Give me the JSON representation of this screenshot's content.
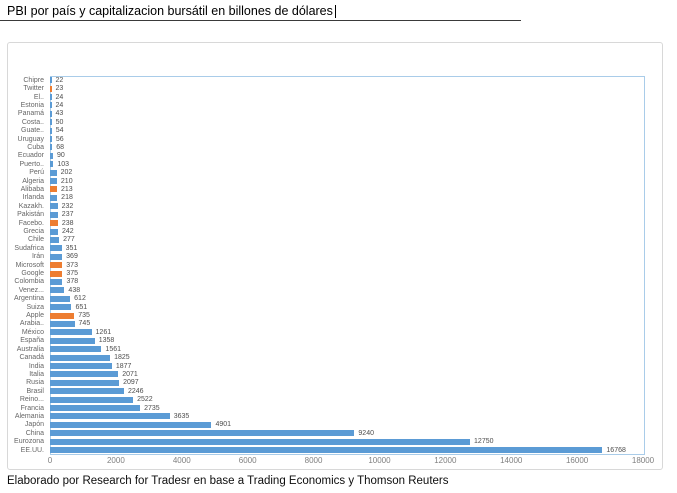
{
  "title_field": {
    "value": "PBI por país y capitalizacion bursátil en billones de dólares"
  },
  "caption": "Elaborado por Research for Tradesr en base a Trading Economics y Thomson Reuters",
  "chart_data": {
    "type": "bar",
    "orientation": "horizontal",
    "title": "PBI por país y capitalizacion bursátil en billones de dólares",
    "source_note": "Elaborado por Research for Tradesr en base a Trading Economics y Thomson Reuters",
    "xlabel": "",
    "ylabel": "",
    "xlim": [
      0,
      18000
    ],
    "x_ticks": [
      0,
      2000,
      4000,
      6000,
      8000,
      10000,
      12000,
      14000,
      16000,
      18000
    ],
    "grid": false,
    "legend": "none",
    "value_labels": true,
    "colors": {
      "country": "#5B9BD5",
      "company": "#ED7D31"
    },
    "items": [
      {
        "label": "Chipre",
        "value": 22,
        "type": "country"
      },
      {
        "label": "Twitter",
        "value": 23,
        "type": "company"
      },
      {
        "label": "El..",
        "value": 24,
        "type": "country"
      },
      {
        "label": "Estonia",
        "value": 24,
        "type": "country"
      },
      {
        "label": "Panamá",
        "value": 43,
        "type": "country"
      },
      {
        "label": "Costa..",
        "value": 50,
        "type": "country"
      },
      {
        "label": "Guate..",
        "value": 54,
        "type": "country"
      },
      {
        "label": "Uruguay",
        "value": 56,
        "type": "country"
      },
      {
        "label": "Cuba",
        "value": 68,
        "type": "country"
      },
      {
        "label": "Ecuador",
        "value": 90,
        "type": "country"
      },
      {
        "label": "Puerto..",
        "value": 103,
        "type": "country"
      },
      {
        "label": "Perú",
        "value": 202,
        "type": "country"
      },
      {
        "label": "Algeria",
        "value": 210,
        "type": "country"
      },
      {
        "label": "Alibaba",
        "value": 213,
        "type": "company"
      },
      {
        "label": "Irlanda",
        "value": 218,
        "type": "country"
      },
      {
        "label": "Kazakh.",
        "value": 232,
        "type": "country"
      },
      {
        "label": "Pakistán",
        "value": 237,
        "type": "country"
      },
      {
        "label": "Facebo.",
        "value": 238,
        "type": "company"
      },
      {
        "label": "Grecia",
        "value": 242,
        "type": "country"
      },
      {
        "label": "Chile",
        "value": 277,
        "type": "country"
      },
      {
        "label": "Sudafrica",
        "value": 351,
        "type": "country"
      },
      {
        "label": "Irán",
        "value": 369,
        "type": "country"
      },
      {
        "label": "Microsoft",
        "value": 373,
        "type": "company"
      },
      {
        "label": "Google",
        "value": 375,
        "type": "company"
      },
      {
        "label": "Colombia",
        "value": 378,
        "type": "country"
      },
      {
        "label": "Venez...",
        "value": 438,
        "type": "country"
      },
      {
        "label": "Argentina",
        "value": 612,
        "type": "country"
      },
      {
        "label": "Suiza",
        "value": 651,
        "type": "country"
      },
      {
        "label": "Apple",
        "value": 735,
        "type": "company"
      },
      {
        "label": "Arabia..",
        "value": 745,
        "type": "country"
      },
      {
        "label": "México",
        "value": 1261,
        "type": "country"
      },
      {
        "label": "España",
        "value": 1358,
        "type": "country"
      },
      {
        "label": "Australia",
        "value": 1561,
        "type": "country"
      },
      {
        "label": "Canadá",
        "value": 1825,
        "type": "country"
      },
      {
        "label": "India",
        "value": 1877,
        "type": "country"
      },
      {
        "label": "Italia",
        "value": 2071,
        "type": "country"
      },
      {
        "label": "Rusia",
        "value": 2097,
        "type": "country"
      },
      {
        "label": "Brasil",
        "value": 2246,
        "type": "country"
      },
      {
        "label": "Reino...",
        "value": 2522,
        "type": "country"
      },
      {
        "label": "Francia",
        "value": 2735,
        "type": "country"
      },
      {
        "label": "Alemania",
        "value": 3635,
        "type": "country"
      },
      {
        "label": "Japón",
        "value": 4901,
        "type": "country"
      },
      {
        "label": "China",
        "value": 9240,
        "type": "country"
      },
      {
        "label": "Eurozona",
        "value": 12750,
        "type": "country"
      },
      {
        "label": "EE.UU.",
        "value": 16768,
        "type": "country"
      }
    ]
  }
}
